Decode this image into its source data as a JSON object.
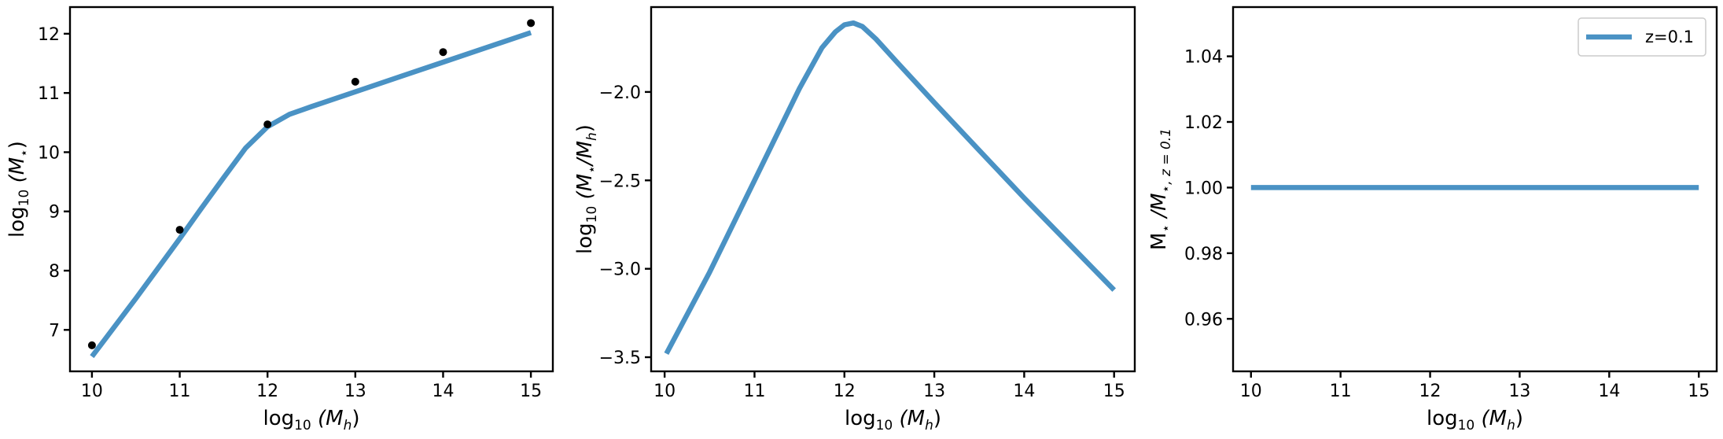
{
  "colors": {
    "line": "#4a92c4",
    "points": "#000000"
  },
  "chart_data": [
    {
      "type": "line",
      "xlim": [
        9.75,
        15.25
      ],
      "ylim": [
        6.3,
        12.45
      ],
      "xticks": [
        10,
        11,
        12,
        13,
        14,
        15
      ],
      "xtick_labels": [
        "10",
        "11",
        "12",
        "13",
        "14",
        "15"
      ],
      "yticks": [
        7,
        8,
        9,
        10,
        11,
        12
      ],
      "ytick_labels": [
        "7",
        "8",
        "9",
        "10",
        "11",
        "12"
      ],
      "xlabel": {
        "base": "log",
        "sub": "10",
        "rest": "(M",
        "var_sub": "h",
        "close": ")"
      },
      "ylabel": {
        "base": "log",
        "sub": "10",
        "rest": "(M",
        "var_sub": "⋆",
        "close": ")"
      },
      "series": [
        {
          "style": "line",
          "x": [
            10.0,
            10.5,
            11.0,
            11.25,
            11.5,
            11.75,
            12.0,
            12.25,
            12.5,
            13.0,
            13.5,
            14.0,
            14.5,
            15.0
          ],
          "y": [
            6.55,
            7.53,
            8.54,
            9.06,
            9.57,
            10.07,
            10.43,
            10.64,
            10.77,
            11.02,
            11.27,
            11.52,
            11.77,
            12.02
          ]
        },
        {
          "style": "scatter",
          "x": [
            10,
            11,
            12,
            13,
            14,
            15
          ],
          "y": [
            6.74,
            8.69,
            10.47,
            11.19,
            11.69,
            12.18
          ]
        }
      ],
      "grid": false
    },
    {
      "type": "line",
      "xlim": [
        9.85,
        15.23
      ],
      "ylim": [
        -3.58,
        -1.52
      ],
      "xticks": [
        10,
        11,
        12,
        13,
        14,
        15
      ],
      "xtick_labels": [
        "10",
        "11",
        "12",
        "13",
        "14",
        "15"
      ],
      "yticks": [
        -3.5,
        -3.0,
        -2.5,
        -2.0
      ],
      "ytick_labels": [
        "−3.5",
        "−3.0",
        "−2.5",
        "−2.0"
      ],
      "xlabel": {
        "base": "log",
        "sub": "10",
        "rest": "(M",
        "var_sub": "h",
        "close": ")"
      },
      "ylabel": {
        "base": "log",
        "sub": "10",
        "rest": "(M",
        "var_sub": "⋆",
        "mid": "/M",
        "var_sub2": "h",
        "close": ")"
      },
      "series": [
        {
          "style": "line",
          "x": [
            10.02,
            10.5,
            11.0,
            11.5,
            11.75,
            11.9,
            12.0,
            12.1,
            12.2,
            12.35,
            12.6,
            13.0,
            13.5,
            14.0,
            14.5,
            15.0
          ],
          "y": [
            -3.48,
            -3.02,
            -2.5,
            -1.98,
            -1.75,
            -1.66,
            -1.62,
            -1.61,
            -1.63,
            -1.7,
            -1.84,
            -2.06,
            -2.33,
            -2.6,
            -2.86,
            -3.12
          ]
        }
      ],
      "grid": false
    },
    {
      "type": "line",
      "xlim": [
        9.8,
        15.2
      ],
      "ylim": [
        0.944,
        1.055
      ],
      "xticks": [
        10,
        11,
        12,
        13,
        14,
        15
      ],
      "xtick_labels": [
        "10",
        "11",
        "12",
        "13",
        "14",
        "15"
      ],
      "yticks": [
        0.96,
        0.98,
        1.0,
        1.02,
        1.04
      ],
      "ytick_labels": [
        "0.96",
        "0.98",
        "1.00",
        "1.02",
        "1.04"
      ],
      "xlabel": {
        "base": "log",
        "sub": "10",
        "rest": "(M",
        "var_sub": "h",
        "close": ")"
      },
      "ylabel": {
        "base": "M",
        "sub": "⋆",
        "rest": "/M",
        "var_sub": "⋆, z = 0.1"
      },
      "legend": {
        "placement": "top-right",
        "label": "z=0.1"
      },
      "series": [
        {
          "style": "line",
          "name": "z=0.1",
          "x": [
            10,
            15
          ],
          "y": [
            1.0,
            1.0
          ]
        }
      ],
      "grid": false
    }
  ]
}
